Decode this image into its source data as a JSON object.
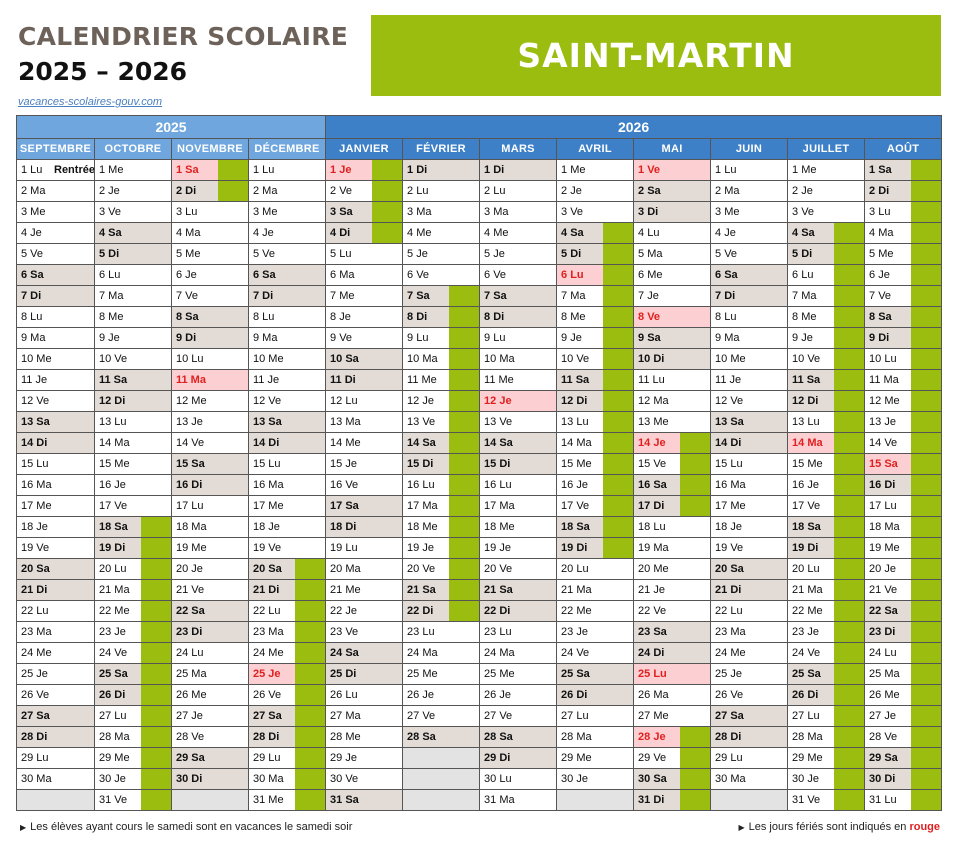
{
  "header": {
    "title": "CALENDRIER SCOLAIRE",
    "years": "2025 – 2026",
    "link": "vacances-scolaires-gouv.com",
    "region": "SAINT-MARTIN"
  },
  "year_labels": [
    "2025",
    "2026"
  ],
  "months": [
    "SEPTEMBRE",
    "OCTOBRE",
    "NOVEMBRE",
    "DÉCEMBRE",
    "JANVIER",
    "FÉVRIER",
    "MARS",
    "AVRIL",
    "MAI",
    "JUIN",
    "JUILLET",
    "AOÛT"
  ],
  "rentree_label": "Rentrée",
  "calendar": [
    {
      "start": "2025-09-01",
      "days": 30,
      "holidays": [],
      "vacation": [],
      "note_day": 1
    },
    {
      "start": "2025-10-01",
      "days": 31,
      "holidays": [],
      "vacation": [
        [
          18,
          31
        ]
      ]
    },
    {
      "start": "2025-11-01",
      "days": 30,
      "holidays": [
        1,
        11
      ],
      "vacation": [
        [
          1,
          2
        ]
      ]
    },
    {
      "start": "2025-12-01",
      "days": 31,
      "holidays": [
        25
      ],
      "vacation": [
        [
          20,
          31
        ]
      ]
    },
    {
      "start": "2026-01-01",
      "days": 31,
      "holidays": [
        1
      ],
      "vacation": [
        [
          1,
          4
        ]
      ]
    },
    {
      "start": "2026-02-01",
      "days": 28,
      "holidays": [],
      "vacation": [
        [
          7,
          22
        ]
      ]
    },
    {
      "start": "2026-03-01",
      "days": 31,
      "holidays": [
        12
      ],
      "vacation": []
    },
    {
      "start": "2026-04-01",
      "days": 30,
      "holidays": [
        6
      ],
      "vacation": [
        [
          4,
          19
        ]
      ]
    },
    {
      "start": "2026-05-01",
      "days": 31,
      "holidays": [
        1,
        8,
        14,
        25,
        28
      ],
      "vacation": [
        [
          14,
          17
        ],
        [
          28,
          31
        ]
      ]
    },
    {
      "start": "2026-06-01",
      "days": 30,
      "holidays": [],
      "vacation": []
    },
    {
      "start": "2026-07-01",
      "days": 31,
      "holidays": [
        14
      ],
      "vacation": [
        [
          4,
          31
        ]
      ]
    },
    {
      "start": "2026-08-01",
      "days": 31,
      "holidays": [
        15
      ],
      "vacation": [
        [
          1,
          31
        ]
      ]
    }
  ],
  "day_abbr": [
    "Di",
    "Lu",
    "Ma",
    "Me",
    "Je",
    "Ve",
    "Sa"
  ],
  "footer": {
    "left": "Les élèves ayant cours le samedi sont en vacances le samedi soir",
    "right_prefix": "Les jours fériés sont indiqués en",
    "right_red": "rouge"
  }
}
